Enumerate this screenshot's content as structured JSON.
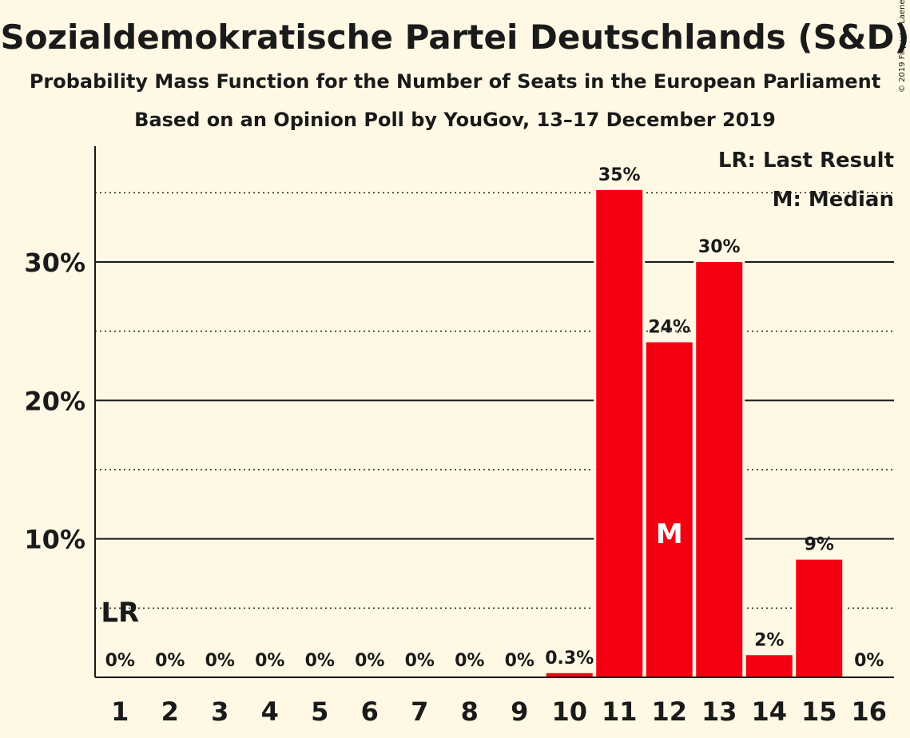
{
  "header": {
    "title": "Sozialdemokratische Partei Deutschlands (S&D)",
    "subtitle": "Probability Mass Function for the Number of Seats in the European Parliament",
    "subtitle2": "Based on an Opinion Poll by YouGov, 13–17 December 2019",
    "copyright": "© 2019 Filip van Laenen"
  },
  "legend": {
    "last_result": "LR: Last Result",
    "median": "M: Median"
  },
  "colors": {
    "bar": "#f40012",
    "background": "#fef8e4",
    "text": "#1a1a1a"
  },
  "chart_data": {
    "type": "bar",
    "categories": [
      "1",
      "2",
      "3",
      "4",
      "5",
      "6",
      "7",
      "8",
      "9",
      "10",
      "11",
      "12",
      "13",
      "14",
      "15",
      "16"
    ],
    "values": [
      0,
      0,
      0,
      0,
      0,
      0,
      0,
      0,
      0,
      0.3,
      35.2,
      24.2,
      30.0,
      1.6,
      8.5,
      0
    ],
    "data_labels": [
      "0%",
      "0%",
      "0%",
      "0%",
      "0%",
      "0%",
      "0%",
      "0%",
      "0%",
      "0.3%",
      "35%",
      "24%",
      "30%",
      "2%",
      "9%",
      "0%"
    ],
    "y_ticks": [
      {
        "value": 10,
        "label": "10%"
      },
      {
        "value": 20,
        "label": "20%"
      },
      {
        "value": 30,
        "label": "30%"
      }
    ],
    "y_minor_ticks": [
      5,
      15,
      25,
      35
    ],
    "ylim": [
      0,
      38
    ],
    "last_result": {
      "category": "1",
      "label": "LR"
    },
    "median": {
      "category": "12",
      "label": "M"
    },
    "grid": true,
    "legend_position": "top-right"
  }
}
